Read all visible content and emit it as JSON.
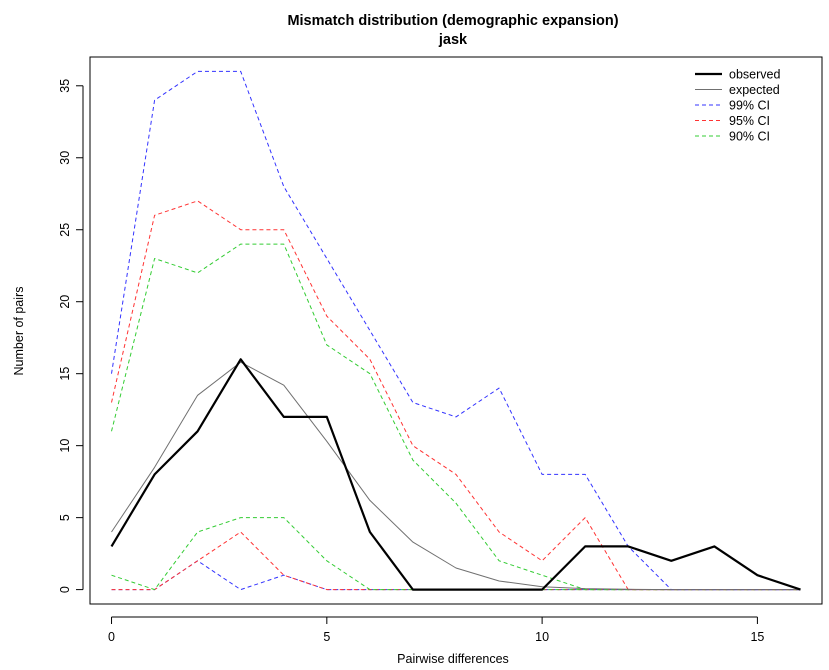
{
  "chart_data": {
    "type": "line",
    "title": "Mismatch distribution (demographic expansion)",
    "subtitle": "jask",
    "xlabel": "Pairwise differences",
    "ylabel": "Number of pairs",
    "xlim": [
      -0.5,
      16.5
    ],
    "ylim": [
      -1,
      37
    ],
    "xticks": [
      0,
      5,
      10,
      15
    ],
    "yticks": [
      0,
      5,
      10,
      15,
      20,
      25,
      30,
      35
    ],
    "grid": false,
    "legend_position": "top-right",
    "x": [
      0,
      1,
      2,
      3,
      4,
      5,
      6,
      7,
      8,
      9,
      10,
      11,
      12,
      13,
      14,
      15,
      16
    ],
    "series": [
      {
        "name": "observed",
        "color": "#000000",
        "dash": "solid",
        "width": 2.2,
        "values": [
          3,
          8,
          11,
          16,
          12,
          12,
          4,
          0,
          0,
          0,
          0,
          3,
          3,
          2,
          3,
          1,
          0
        ]
      },
      {
        "name": "expected",
        "color": "#707070",
        "dash": "solid",
        "width": 1,
        "values": [
          4,
          8.5,
          13.5,
          15.8,
          14.2,
          10.3,
          6.2,
          3.3,
          1.5,
          0.6,
          0.2,
          0.07,
          0.02,
          0,
          0,
          0,
          0
        ]
      },
      {
        "name": "99% CI",
        "color": "#3333ff",
        "dash": "dashed",
        "width": 1,
        "values": [
          15,
          34,
          36,
          36,
          28,
          23,
          18,
          13,
          12,
          14,
          8,
          8,
          3,
          0,
          0,
          0,
          0
        ]
      },
      {
        "name": "95% CI",
        "color": "#ff3333",
        "dash": "dashed",
        "width": 1,
        "values": [
          13,
          26,
          27,
          25,
          25,
          19,
          16,
          10,
          8,
          4,
          2,
          5,
          0,
          0,
          0,
          0,
          0
        ]
      },
      {
        "name": "90% CI",
        "color": "#33cc33",
        "dash": "dashed",
        "width": 1,
        "values": [
          11,
          23,
          22,
          24,
          24,
          17,
          15,
          9,
          6,
          2,
          1,
          0,
          0,
          0,
          0,
          0,
          0
        ]
      },
      {
        "name": "",
        "color": "#33cc33",
        "dash": "dashed",
        "width": 1,
        "values": [
          1,
          0,
          4,
          5,
          5,
          2,
          0,
          0,
          0,
          0,
          0,
          0,
          0,
          0,
          0,
          0,
          0
        ]
      },
      {
        "name": "",
        "color": "#ff3333",
        "dash": "dashed",
        "width": 1,
        "values": [
          0,
          0,
          2,
          4,
          1,
          0,
          0,
          0,
          0,
          0,
          0,
          0,
          0,
          0,
          0,
          0,
          0
        ]
      },
      {
        "name": "",
        "color": "#3333ff",
        "dash": "dashed",
        "width": 1,
        "values": [
          0,
          0,
          2,
          0,
          1,
          0,
          0,
          0,
          0,
          0,
          0,
          0,
          0,
          0,
          0,
          0,
          0
        ]
      }
    ]
  }
}
